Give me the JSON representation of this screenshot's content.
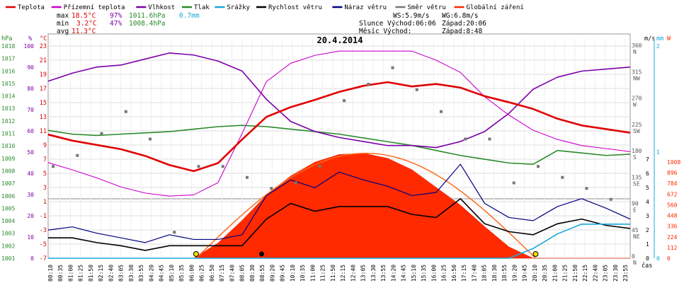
{
  "chart_data": {
    "type": "line",
    "title": "20.4.2014",
    "legend": [
      {
        "label": "Teplota",
        "color": "#e00000"
      },
      {
        "label": "Přízemní teplota",
        "color": "#cc00cc"
      },
      {
        "label": "Vlhkost",
        "color": "#7a00a8"
      },
      {
        "label": "Tlak",
        "color": "#2a8a2a"
      },
      {
        "label": "Srážky",
        "color": "#18a8d8"
      },
      {
        "label": "Rychlost větru",
        "color": "#000000"
      },
      {
        "label": "Náraz větru",
        "color": "#000080"
      },
      {
        "label": "Směr větru",
        "color": "#777777"
      },
      {
        "label": "Globální záření",
        "color": "#ff2a00"
      }
    ],
    "stats": {
      "max_label": "max",
      "max_temp": "18.5°C",
      "max_hum": "97%",
      "max_press": "1011.6hPa",
      "max_rain": "0.7mm",
      "min_label": "min",
      "min_temp": "3.2°C",
      "min_hum": "47%",
      "min_press": "1008.4hPa",
      "avg_label": "avg",
      "avg_temp": "11.3°C"
    },
    "info": {
      "ws": "WS:5.9m/s",
      "wg": "WG:6.8m/s",
      "sun_rise": "Slunce Východ:06:06",
      "sun_set": "Západ:20:06",
      "moon_rise": "Měsíc  Východ:",
      "moon_set": "Západ:8:48"
    },
    "axes": {
      "hpa_unit": "hPa",
      "pct_unit": "%",
      "c_unit": "°C",
      "hpa_ticks": [
        "1018",
        "1017",
        "1016",
        "1015",
        "1014",
        "1013",
        "1012",
        "1011",
        "1010",
        "1009",
        "1008",
        "1007",
        "1006",
        "1005",
        "1004",
        "1003",
        "1002",
        "1001"
      ],
      "pct_ticks": [
        "100",
        "90",
        "80",
        "70",
        "60",
        "50",
        "40",
        "30",
        "20",
        "10",
        "0"
      ],
      "c_ticks": [
        "23",
        "21",
        "19",
        "17",
        "15",
        "13",
        "11",
        "9",
        "7",
        "5",
        "3",
        "1",
        "-1",
        "-3",
        "-5",
        "-7"
      ],
      "ms_unit": "m/s",
      "mm_unit": "mm",
      "w_unit": "W",
      "dir_ticks": [
        "360",
        "315",
        "270",
        "225",
        "180",
        "135",
        "90",
        "45",
        "0"
      ],
      "dir_letters": [
        "N",
        "NW",
        "W",
        "SW",
        "S",
        "SE",
        "E",
        "NE",
        "N"
      ],
      "ms_ticks": [
        "7",
        "6",
        "5",
        "4",
        "3",
        "2",
        "1",
        "0"
      ],
      "mm_ticks": [
        "2",
        "1",
        "0"
      ],
      "w_ticks": [
        "1008",
        "896",
        "784",
        "672",
        "560",
        "448",
        "336",
        "224",
        "112",
        "0"
      ],
      "time_label": "čas",
      "time_ticks": [
        "00:10",
        "00:35",
        "01:00",
        "01:25",
        "01:50",
        "02:15",
        "02:40",
        "03:05",
        "03:30",
        "03:55",
        "04:20",
        "04:45",
        "05:10",
        "05:35",
        "06:00",
        "06:25",
        "06:50",
        "07:15",
        "07:40",
        "08:05",
        "08:30",
        "08:55",
        "09:20",
        "09:45",
        "10:10",
        "10:35",
        "11:00",
        "11:25",
        "11:50",
        "12:15",
        "12:40",
        "13:05",
        "13:30",
        "13:55",
        "14:20",
        "14:45",
        "15:10",
        "15:35",
        "16:00",
        "16:25",
        "16:50",
        "17:15",
        "17:40",
        "18:05",
        "18:30",
        "18:55",
        "19:20",
        "19:45",
        "20:10",
        "20:35",
        "21:00",
        "21:25",
        "21:50",
        "22:15",
        "22:40",
        "23:05",
        "23:30",
        "23:55"
      ]
    },
    "series_hours": [
      0,
      1,
      2,
      3,
      4,
      5,
      6,
      7,
      8,
      9,
      10,
      11,
      12,
      13,
      14,
      15,
      16,
      17,
      18,
      19,
      20,
      21,
      22,
      23,
      24
    ],
    "series": [
      {
        "name": "Teplota",
        "unit": "°C",
        "values": [
          9.3,
          8.3,
          7.6,
          6.9,
          5.8,
          4.3,
          3.3,
          4.6,
          8.5,
          12.2,
          13.8,
          15.0,
          16.3,
          17.3,
          17.9,
          17.2,
          17.6,
          17.0,
          15.6,
          14.6,
          13.5,
          11.9,
          10.8,
          10.2,
          9.6
        ]
      },
      {
        "name": "Přízemní teplota",
        "unit": "°C",
        "values": [
          4.7,
          3.5,
          2.2,
          0.7,
          -0.3,
          -0.8,
          -0.6,
          1.4,
          9.5,
          18.0,
          21.0,
          22.3,
          23.0,
          23.0,
          23.0,
          23.0,
          21.5,
          19.5,
          15.5,
          12.5,
          10.0,
          8.5,
          7.5,
          7.0,
          6.5
        ]
      },
      {
        "name": "Vlhkost",
        "unit": "%",
        "values": [
          83,
          87,
          90,
          91,
          94,
          97,
          96,
          93,
          88,
          74,
          63,
          58,
          55,
          53,
          51,
          51,
          50,
          53,
          58,
          67,
          79,
          85,
          88,
          89,
          90
        ]
      },
      {
        "name": "Tlak",
        "unit": "hPa",
        "values": [
          1011.2,
          1010.9,
          1010.8,
          1010.9,
          1011.0,
          1011.1,
          1011.3,
          1011.5,
          1011.6,
          1011.5,
          1011.3,
          1011.1,
          1010.9,
          1010.6,
          1010.3,
          1010.0,
          1009.6,
          1009.2,
          1008.9,
          1008.6,
          1008.5,
          1009.6,
          1009.4,
          1009.2,
          1009.3
        ]
      },
      {
        "name": "Globální záření",
        "unit": "W",
        "values": [
          0,
          0,
          0,
          0,
          0,
          0,
          0,
          120,
          300,
          500,
          650,
          760,
          820,
          830,
          790,
          700,
          560,
          420,
          250,
          90,
          0,
          0,
          0,
          0,
          0
        ]
      },
      {
        "name": "Rychlost větru",
        "unit": "m/s",
        "values": [
          1.3,
          1.3,
          1.0,
          0.8,
          0.5,
          0.8,
          0.8,
          0.8,
          0.8,
          2.5,
          3.5,
          3.0,
          3.3,
          3.3,
          3.3,
          2.8,
          2.6,
          3.8,
          2.2,
          1.7,
          1.5,
          2.2,
          2.5,
          2.1,
          1.9
        ]
      },
      {
        "name": "Náraz větru",
        "unit": "m/s",
        "values": [
          1.8,
          2.0,
          1.6,
          1.3,
          1.0,
          1.5,
          1.2,
          1.2,
          1.5,
          4.0,
          5.0,
          4.5,
          5.5,
          5.0,
          4.6,
          4.0,
          4.2,
          6.0,
          3.5,
          2.6,
          2.4,
          3.3,
          3.8,
          3.2,
          2.5
        ]
      },
      {
        "name": "Směr větru",
        "unit": "°",
        "values": [
          150,
          170,
          210,
          250,
          200,
          30,
          150,
          150,
          130,
          110,
          120,
          150,
          270,
          300,
          330,
          290,
          250,
          200,
          200,
          120,
          150,
          130,
          110,
          90,
          100
        ]
      },
      {
        "name": "Srážky",
        "unit": "mm",
        "values": [
          0,
          0,
          0,
          0,
          0,
          0,
          0,
          0,
          0,
          0,
          0,
          0,
          0,
          0,
          0,
          0,
          0,
          0,
          0,
          0,
          0.2,
          0.5,
          0.7,
          0.7,
          0.7
        ]
      }
    ],
    "ylim_celsius": [
      -7,
      24
    ],
    "ylim_hpa": [
      1001,
      1018.5
    ],
    "ylim_pct": [
      0,
      100
    ],
    "ylim_wind": [
      0,
      7
    ],
    "ylim_dir": [
      0,
      360
    ],
    "ylim_rad": [
      0,
      1008
    ],
    "ylim_rain": [
      0,
      2
    ],
    "grid": true
  }
}
